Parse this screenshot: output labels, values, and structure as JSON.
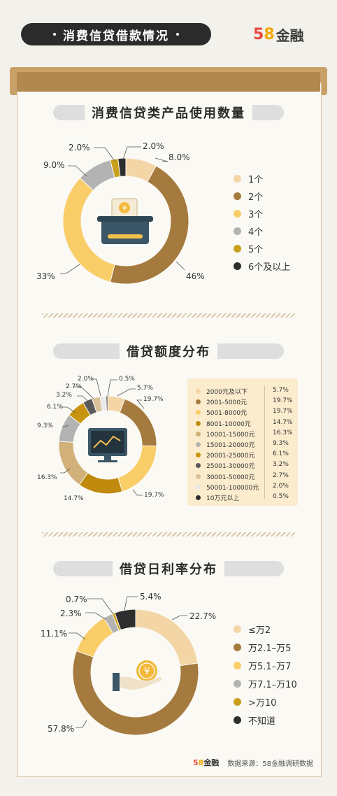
{
  "header": {
    "title": "消费信贷借款情况"
  },
  "logo": {
    "num5": "5",
    "num8": "8",
    "text": "金融"
  },
  "chart_data": [
    {
      "type": "pie",
      "title": "消费信贷类产品使用数量",
      "categories": [
        "1个",
        "2个",
        "3个",
        "4个",
        "5个",
        "6个及以上"
      ],
      "values": [
        8.0,
        46,
        33,
        9.0,
        2.0,
        2.0
      ],
      "value_labels": [
        "8.0%",
        "46%",
        "33%",
        "9.0%",
        "2.0%",
        "2.0%"
      ],
      "colors": [
        "#f4d6a6",
        "#a57a3e",
        "#f9cd68",
        "#b3b3b3",
        "#c9a01c",
        "#2e2e2e"
      ]
    },
    {
      "type": "pie",
      "title": "借贷额度分布",
      "categories": [
        "2000元及以下",
        "2001-5000元",
        "5001-8000元",
        "8001-10000元",
        "10001-15000元",
        "15001-20000元",
        "20001-25000元",
        "25001-30000元",
        "30001-50000元",
        "50001-100000元",
        "10万元以上"
      ],
      "values": [
        5.7,
        19.7,
        19.7,
        14.7,
        16.3,
        9.3,
        6.1,
        3.2,
        2.7,
        2.0,
        0.5
      ],
      "value_labels": [
        "5.7%",
        "19.7%",
        "19.7%",
        "14.7%",
        "16.3%",
        "9.3%",
        "6.1%",
        "3.2%",
        "2.7%",
        "2.0%",
        "0.5%"
      ],
      "colors": [
        "#f4d6a6",
        "#a57a3e",
        "#f9cd68",
        "#c08a0e",
        "#d1b07a",
        "#b3b3b3",
        "#c8930e",
        "#5a5a5a",
        "#d9c19a",
        "#e9e9e9",
        "#2e2e2e"
      ]
    },
    {
      "type": "pie",
      "title": "借贷日利率分布",
      "categories": [
        "≤万2",
        "万2.1–万5",
        "万5.1–万7",
        "万7.1–万10",
        ">万10",
        "不知道"
      ],
      "values": [
        22.7,
        57.8,
        11.1,
        2.3,
        0.7,
        5.4
      ],
      "value_labels": [
        "22.7%",
        "57.8%",
        "11.1%",
        "2.3%",
        "0.7%",
        "5.4%"
      ],
      "colors": [
        "#f4d6a6",
        "#a57a3e",
        "#f9cd68",
        "#b3b3b3",
        "#c9a01c",
        "#2e2e2e"
      ]
    }
  ],
  "icons": {
    "chart1": "atm-card-icon",
    "chart2": "monitor-chart-icon",
    "chart3": "hand-coin-icon"
  },
  "footer": {
    "logo": "58金融",
    "source": "数据来源：58金融调研数据"
  }
}
